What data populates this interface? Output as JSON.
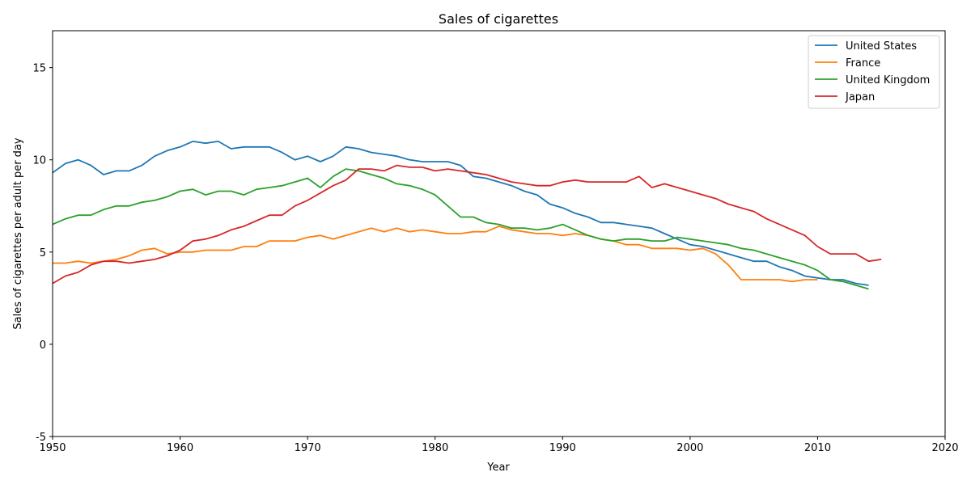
{
  "chart_data": {
    "type": "line",
    "title": "Sales of cigarettes",
    "xlabel": "Year",
    "ylabel": "Sales of cigarettes per adult per day",
    "xlim": [
      1950,
      2020
    ],
    "ylim": [
      -5,
      17
    ],
    "xticks": [
      1950,
      1960,
      1970,
      1980,
      1990,
      2000,
      2010,
      2020
    ],
    "yticks": [
      -5,
      0,
      5,
      10,
      15
    ],
    "grid": false,
    "legend_position": "top-right",
    "series": [
      {
        "name": "United States",
        "color": "#1f77b4",
        "x": [
          1950,
          1951,
          1952,
          1953,
          1954,
          1955,
          1956,
          1957,
          1958,
          1959,
          1960,
          1961,
          1962,
          1963,
          1964,
          1965,
          1966,
          1967,
          1968,
          1969,
          1970,
          1971,
          1972,
          1973,
          1974,
          1975,
          1976,
          1977,
          1978,
          1979,
          1980,
          1981,
          1982,
          1983,
          1984,
          1985,
          1986,
          1987,
          1988,
          1989,
          1990,
          1991,
          1992,
          1993,
          1994,
          1995,
          1996,
          1997,
          1998,
          1999,
          2000,
          2001,
          2002,
          2003,
          2004,
          2005,
          2006,
          2007,
          2008,
          2009,
          2010,
          2011,
          2012,
          2013,
          2014
        ],
        "y": [
          9.3,
          9.8,
          10.0,
          9.7,
          9.2,
          9.4,
          9.4,
          9.7,
          10.2,
          10.5,
          10.7,
          11.0,
          10.9,
          11.0,
          10.6,
          10.7,
          10.7,
          10.7,
          10.4,
          10.0,
          10.2,
          9.9,
          10.2,
          10.7,
          10.6,
          10.4,
          10.3,
          10.2,
          10.0,
          9.9,
          9.9,
          9.9,
          9.7,
          9.1,
          9.0,
          8.8,
          8.6,
          8.3,
          8.1,
          7.6,
          7.4,
          7.1,
          6.9,
          6.6,
          6.6,
          6.5,
          6.4,
          6.3,
          6.0,
          5.7,
          5.4,
          5.3,
          5.1,
          4.9,
          4.7,
          4.5,
          4.5,
          4.2,
          4.0,
          3.7,
          3.6,
          3.5,
          3.5,
          3.3,
          3.2
        ]
      },
      {
        "name": "France",
        "color": "#ff7f0e",
        "x": [
          1950,
          1951,
          1952,
          1953,
          1954,
          1955,
          1956,
          1957,
          1958,
          1959,
          1960,
          1961,
          1962,
          1963,
          1964,
          1965,
          1966,
          1967,
          1968,
          1969,
          1970,
          1971,
          1972,
          1973,
          1974,
          1975,
          1976,
          1977,
          1978,
          1979,
          1980,
          1981,
          1982,
          1983,
          1984,
          1985,
          1986,
          1987,
          1988,
          1989,
          1990,
          1991,
          1992,
          1993,
          1994,
          1995,
          1996,
          1997,
          1998,
          1999,
          2000,
          2001,
          2002,
          2003,
          2004,
          2005,
          2006,
          2007,
          2008,
          2009,
          2010
        ],
        "y": [
          4.4,
          4.4,
          4.5,
          4.4,
          4.5,
          4.6,
          4.8,
          5.1,
          5.2,
          4.9,
          5.0,
          5.0,
          5.1,
          5.1,
          5.1,
          5.3,
          5.3,
          5.6,
          5.6,
          5.6,
          5.8,
          5.9,
          5.7,
          5.9,
          6.1,
          6.3,
          6.1,
          6.3,
          6.1,
          6.2,
          6.1,
          6.0,
          6.0,
          6.1,
          6.1,
          6.4,
          6.2,
          6.1,
          6.0,
          6.0,
          5.9,
          6.0,
          5.9,
          5.7,
          5.6,
          5.4,
          5.4,
          5.2,
          5.2,
          5.2,
          5.1,
          5.2,
          4.9,
          4.3,
          3.5,
          3.5,
          3.5,
          3.5,
          3.4,
          3.5,
          3.5
        ]
      },
      {
        "name": "United Kingdom",
        "color": "#2ca02c",
        "x": [
          1950,
          1951,
          1952,
          1953,
          1954,
          1955,
          1956,
          1957,
          1958,
          1959,
          1960,
          1961,
          1962,
          1963,
          1964,
          1965,
          1966,
          1967,
          1968,
          1969,
          1970,
          1971,
          1972,
          1973,
          1974,
          1975,
          1976,
          1977,
          1978,
          1979,
          1980,
          1981,
          1982,
          1983,
          1984,
          1985,
          1986,
          1987,
          1988,
          1989,
          1990,
          1991,
          1992,
          1993,
          1994,
          1995,
          1996,
          1997,
          1998,
          1999,
          2000,
          2001,
          2002,
          2003,
          2004,
          2005,
          2006,
          2007,
          2008,
          2009,
          2010,
          2011,
          2012,
          2013,
          2014
        ],
        "y": [
          6.5,
          6.8,
          7.0,
          7.0,
          7.3,
          7.5,
          7.5,
          7.7,
          7.8,
          8.0,
          8.3,
          8.4,
          8.1,
          8.3,
          8.3,
          8.1,
          8.4,
          8.5,
          8.6,
          8.8,
          9.0,
          8.5,
          9.1,
          9.5,
          9.4,
          9.2,
          9.0,
          8.7,
          8.6,
          8.4,
          8.1,
          7.5,
          6.9,
          6.9,
          6.6,
          6.5,
          6.3,
          6.3,
          6.2,
          6.3,
          6.5,
          6.2,
          5.9,
          5.7,
          5.6,
          5.7,
          5.7,
          5.6,
          5.6,
          5.8,
          5.7,
          5.6,
          5.5,
          5.4,
          5.2,
          5.1,
          4.9,
          4.7,
          4.5,
          4.3,
          4.0,
          3.5,
          3.4,
          3.2,
          3.0
        ]
      },
      {
        "name": "Japan",
        "color": "#d62728",
        "x": [
          1950,
          1951,
          1952,
          1953,
          1954,
          1955,
          1956,
          1957,
          1958,
          1959,
          1960,
          1961,
          1962,
          1963,
          1964,
          1965,
          1966,
          1967,
          1968,
          1969,
          1970,
          1971,
          1972,
          1973,
          1974,
          1975,
          1976,
          1977,
          1978,
          1979,
          1980,
          1981,
          1982,
          1983,
          1984,
          1985,
          1986,
          1987,
          1988,
          1989,
          1990,
          1991,
          1992,
          1993,
          1994,
          1995,
          1996,
          1997,
          1998,
          1999,
          2000,
          2001,
          2002,
          2003,
          2004,
          2005,
          2006,
          2007,
          2008,
          2009,
          2010,
          2011,
          2012,
          2013,
          2014,
          2015
        ],
        "y": [
          3.3,
          3.7,
          3.9,
          4.3,
          4.5,
          4.5,
          4.4,
          4.5,
          4.6,
          4.8,
          5.1,
          5.6,
          5.7,
          5.9,
          6.2,
          6.4,
          6.7,
          7.0,
          7.0,
          7.5,
          7.8,
          8.2,
          8.6,
          8.9,
          9.5,
          9.5,
          9.4,
          9.7,
          9.6,
          9.6,
          9.4,
          9.5,
          9.4,
          9.3,
          9.2,
          9.0,
          8.8,
          8.7,
          8.6,
          8.6,
          8.8,
          8.9,
          8.8,
          8.8,
          8.8,
          8.8,
          9.1,
          8.5,
          8.7,
          8.5,
          8.3,
          8.1,
          7.9,
          7.6,
          7.4,
          7.2,
          6.8,
          6.5,
          6.2,
          5.9,
          5.3,
          4.9,
          4.9,
          4.9,
          4.5,
          4.6
        ]
      }
    ]
  }
}
